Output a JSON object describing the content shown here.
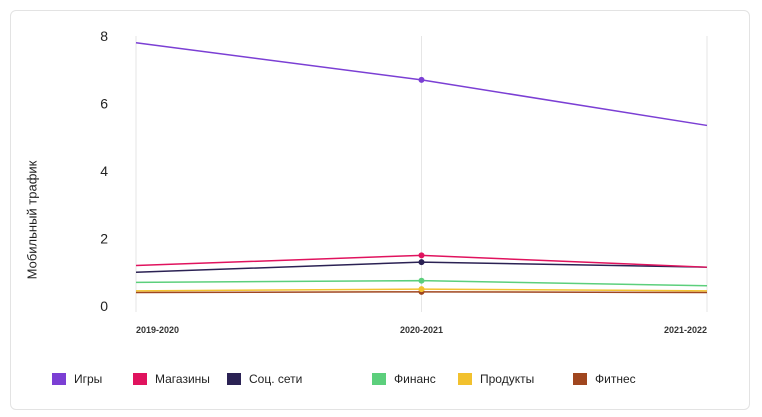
{
  "chart_data": {
    "type": "line",
    "categories": [
      "2019-2020",
      "2020-2021",
      "2021-2022"
    ],
    "ylabel": "Мобильный трафик",
    "ylim": [
      0,
      8
    ],
    "yticks": [
      "0",
      "2",
      "4",
      "6",
      "8"
    ],
    "grid": "vertical",
    "legend_position": "bottom",
    "series": [
      {
        "name": "Игры",
        "color": "#7b3fd4",
        "values": [
          7.8,
          6.7,
          5.35
        ]
      },
      {
        "name": "Магазины",
        "color": "#e0135e",
        "values": [
          1.2,
          1.5,
          1.15
        ]
      },
      {
        "name": "Соц. сети",
        "color": "#2b2254",
        "values": [
          1.0,
          1.3,
          1.15
        ]
      },
      {
        "name": "Финанс",
        "color": "#5ccf7c",
        "values": [
          0.7,
          0.75,
          0.6
        ]
      },
      {
        "name": "Продукты",
        "color": "#f2c12e",
        "values": [
          0.45,
          0.5,
          0.45
        ]
      },
      {
        "name": "Фитнес",
        "color": "#a0461f",
        "values": [
          0.4,
          0.42,
          0.4
        ]
      }
    ]
  }
}
